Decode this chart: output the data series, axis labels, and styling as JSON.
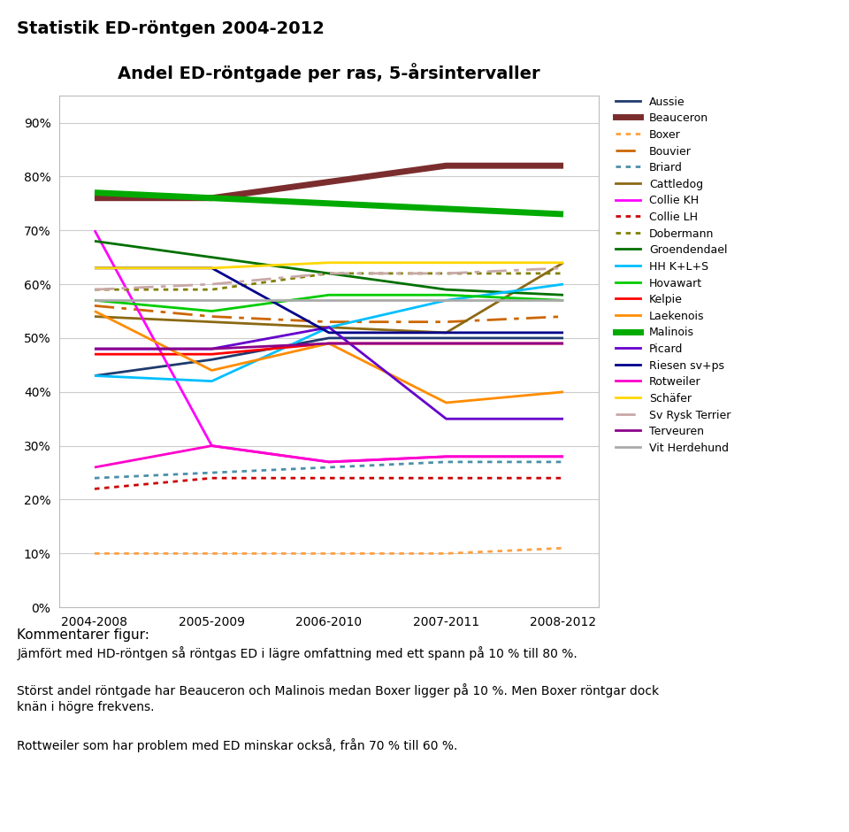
{
  "title": "Statistik ED-röntgen 2004-2012",
  "chart_title": "Andel ED-röntgade per ras, 5-årsintervaller",
  "x_labels": [
    "2004-2008",
    "2005-2009",
    "2006-2010",
    "2007-2011",
    "2008-2012"
  ],
  "series": {
    "Aussie": {
      "values": [
        43,
        46,
        50,
        50,
        50
      ],
      "color": "#1F3A6E",
      "linestyle": "solid",
      "linewidth": 2.0
    },
    "Beauceron": {
      "values": [
        76,
        76,
        79,
        82,
        82
      ],
      "color": "#7B2D2D",
      "linestyle": "solid",
      "linewidth": 5.0
    },
    "Boxer": {
      "values": [
        10,
        10,
        10,
        10,
        11
      ],
      "color": "#FFA040",
      "linestyle": "dotted",
      "linewidth": 2.0
    },
    "Bouvier": {
      "values": [
        56,
        54,
        53,
        53,
        54
      ],
      "color": "#CC6600",
      "linestyle": "dashdot",
      "linewidth": 2.0
    },
    "Briard": {
      "values": [
        24,
        25,
        26,
        27,
        27
      ],
      "color": "#4A8FAA",
      "linestyle": "dotted",
      "linewidth": 2.0
    },
    "Cattledog": {
      "values": [
        54,
        53,
        52,
        51,
        64
      ],
      "color": "#8B6914",
      "linestyle": "solid",
      "linewidth": 2.0
    },
    "Collie KH": {
      "values": [
        70,
        30,
        27,
        28,
        28
      ],
      "color": "#FF00FF",
      "linestyle": "solid",
      "linewidth": 2.0
    },
    "Collie LH": {
      "values": [
        22,
        24,
        24,
        24,
        24
      ],
      "color": "#CC0000",
      "linestyle": "dotted",
      "linewidth": 2.0
    },
    "Dobermann": {
      "values": [
        59,
        59,
        62,
        62,
        62
      ],
      "color": "#808000",
      "linestyle": "dotted",
      "linewidth": 2.0
    },
    "Groendendael": {
      "values": [
        68,
        65,
        62,
        59,
        58
      ],
      "color": "#007000",
      "linestyle": "solid",
      "linewidth": 2.0
    },
    "HH K+L+S": {
      "values": [
        43,
        42,
        52,
        57,
        60
      ],
      "color": "#00BFFF",
      "linestyle": "solid",
      "linewidth": 2.0
    },
    "Hovawart": {
      "values": [
        57,
        55,
        58,
        58,
        57
      ],
      "color": "#00CC00",
      "linestyle": "solid",
      "linewidth": 2.0
    },
    "Kelpie": {
      "values": [
        47,
        47,
        49,
        49,
        49
      ],
      "color": "#FF0000",
      "linestyle": "solid",
      "linewidth": 2.0
    },
    "Laekenois": {
      "values": [
        55,
        44,
        49,
        38,
        40
      ],
      "color": "#FF8C00",
      "linestyle": "solid",
      "linewidth": 2.0
    },
    "Malinois": {
      "values": [
        77,
        76,
        75,
        74,
        73
      ],
      "color": "#00AA00",
      "linestyle": "solid",
      "linewidth": 5.0
    },
    "Picard": {
      "values": [
        48,
        48,
        52,
        35,
        35
      ],
      "color": "#6600CC",
      "linestyle": "solid",
      "linewidth": 2.0
    },
    "Riesen sv+ps": {
      "values": [
        63,
        63,
        51,
        51,
        51
      ],
      "color": "#00008B",
      "linestyle": "solid",
      "linewidth": 2.0
    },
    "Rotweiler": {
      "values": [
        26,
        30,
        27,
        28,
        28
      ],
      "color": "#FF00CC",
      "linestyle": "solid",
      "linewidth": 2.0
    },
    "Schäfer": {
      "values": [
        63,
        63,
        64,
        64,
        64
      ],
      "color": "#FFD700",
      "linestyle": "solid",
      "linewidth": 2.0
    },
    "Sv Rysk Terrier": {
      "values": [
        59,
        60,
        62,
        62,
        63
      ],
      "color": "#C8A8A8",
      "linestyle": "dashdot",
      "linewidth": 2.0
    },
    "Terveuren": {
      "values": [
        48,
        48,
        49,
        49,
        49
      ],
      "color": "#8B008B",
      "linestyle": "solid",
      "linewidth": 2.0
    },
    "Vit Herdehund": {
      "values": [
        57,
        57,
        57,
        57,
        57
      ],
      "color": "#AAAAAA",
      "linestyle": "solid",
      "linewidth": 2.0
    }
  },
  "comment_lines": [
    "Kommentarer figur:",
    "Jämfört med HD-röntgen så röntgas ED i lägre omfattning med ett spann på 10 % till 80 %.",
    "",
    "Störst andel röntgade har Beauceron och Malinois medan Boxer ligger på 10 %. Men Boxer röntgar dock",
    "knän i högre frekvens.",
    "",
    "Rottweiler som har problem med ED minskar också, från 70 % till 60 %."
  ]
}
